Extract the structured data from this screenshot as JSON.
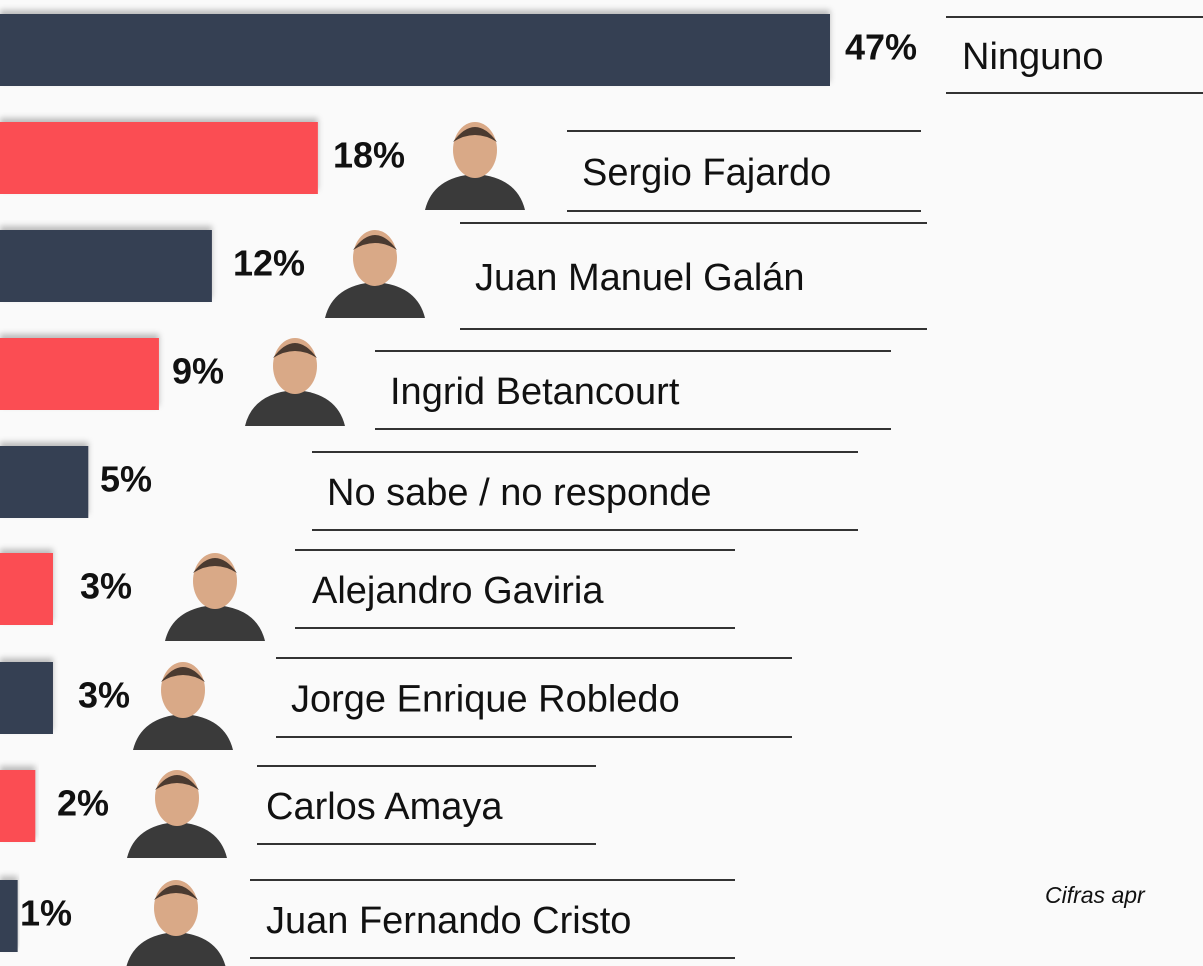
{
  "chart_data": {
    "type": "bar",
    "orientation": "horizontal",
    "categories": [
      "Ninguno",
      "Sergio Fajardo",
      "Juan Manuel Galán",
      "Ingrid Betancourt",
      "No sabe / no responde",
      "Alejandro Gaviria",
      "Jorge Enrique Robledo",
      "Carlos Amaya",
      "Juan Fernando Cristo"
    ],
    "values": [
      47,
      18,
      12,
      9,
      5,
      3,
      3,
      2,
      1
    ],
    "value_labels": [
      "47%",
      "18%",
      "12%",
      "9%",
      "5%",
      "3%",
      "3%",
      "2%",
      "1%"
    ],
    "colors": [
      "#363f52",
      "#fb4e52",
      "#363f52",
      "#fb4e52",
      "#363f52",
      "#fb4e52",
      "#363f52",
      "#fb4e52",
      "#363f52"
    ],
    "annotation": "Cifras apr"
  }
}
